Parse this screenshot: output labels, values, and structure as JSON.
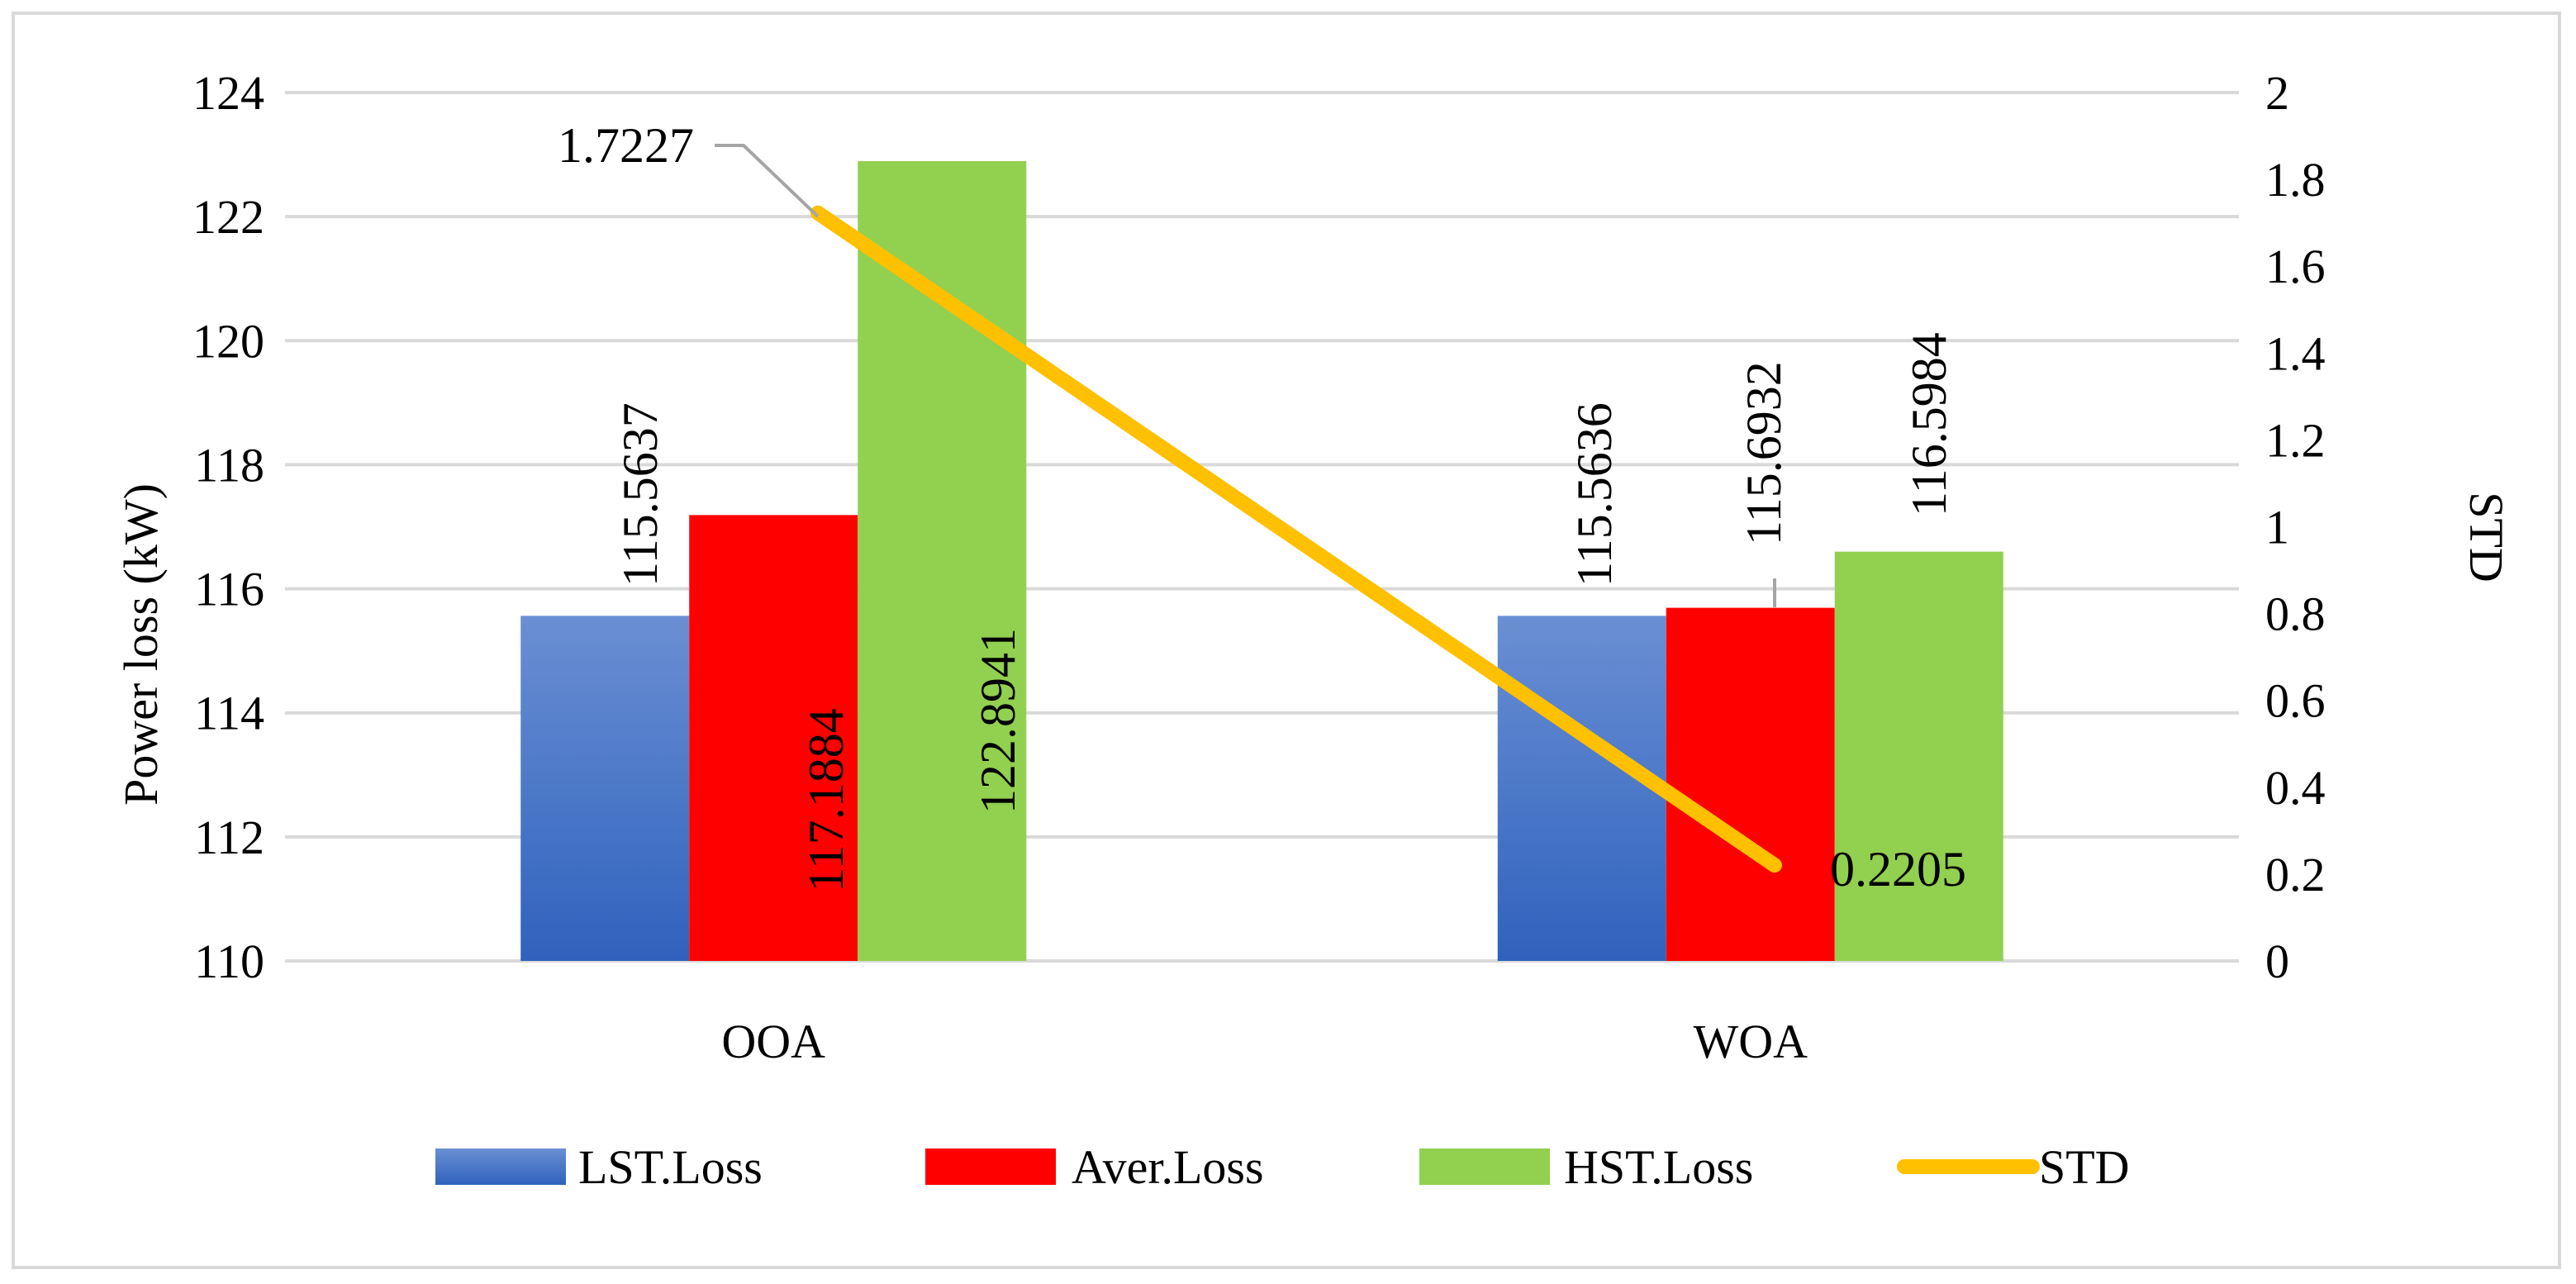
{
  "chart_data": {
    "type": "bar",
    "categories": [
      "OOA",
      "WOA"
    ],
    "series": [
      {
        "name": "LST.Loss",
        "values": [
          115.5637,
          115.5636
        ],
        "color": "#4472c4",
        "labels": [
          "115.5637",
          "115.5636"
        ]
      },
      {
        "name": "Aver.Loss",
        "values": [
          117.1884,
          115.6932
        ],
        "color": "#ff0000",
        "labels": [
          "117.1884",
          "115.6932"
        ]
      },
      {
        "name": "HST.Loss",
        "values": [
          122.8941,
          116.5984
        ],
        "color": "#92d050",
        "labels": [
          "122.8941",
          "116.5984"
        ]
      }
    ],
    "line_series": {
      "name": "STD",
      "values": [
        1.7227,
        0.2205
      ],
      "color": "#ffc000",
      "axis": "right",
      "labels": [
        "1.7227",
        "0.2205"
      ]
    },
    "ylabel": "Power loss (kW)",
    "y2label": "STD",
    "ylim": [
      110,
      124
    ],
    "yticks": [
      "110",
      "112",
      "114",
      "116",
      "118",
      "120",
      "122",
      "124"
    ],
    "y2lim": [
      0,
      2
    ],
    "y2ticks": [
      "0",
      "0.2",
      "0.4",
      "0.6",
      "0.8",
      "1",
      "1.2",
      "1.4",
      "1.6",
      "1.8",
      "2"
    ],
    "grid": true,
    "legend_position": "bottom"
  }
}
